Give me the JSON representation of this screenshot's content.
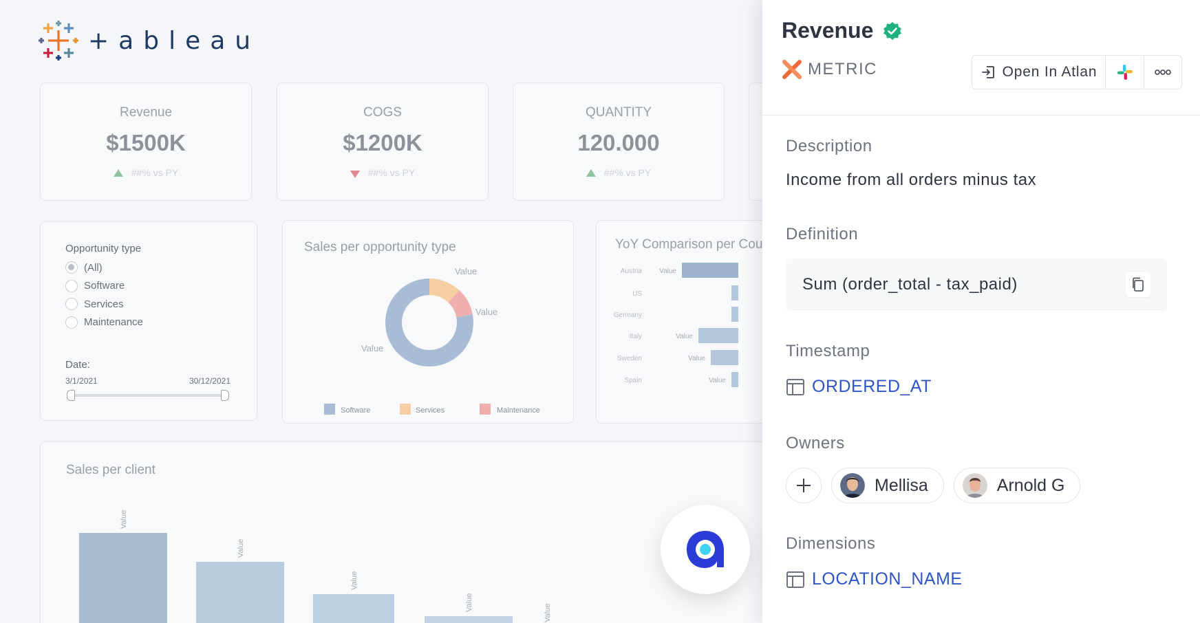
{
  "colors": {
    "atlan_blue": "#2d55c8",
    "verified_green": "#1fb27f",
    "software": "#a9bcd6",
    "services": "#f7cfa4",
    "maintenance": "#f0afaf"
  },
  "dashboard": {
    "logo_text": "+ableau",
    "kpis": [
      {
        "title": "Revenue",
        "value": "$1500K",
        "sub": "##% vs PY",
        "trend": "up"
      },
      {
        "title": "COGS",
        "value": "$1200K",
        "sub": "##% vs PY",
        "trend": "down"
      },
      {
        "title": "QUANTITY",
        "value": "120.000",
        "sub": "##% vs PY",
        "trend": "up"
      }
    ],
    "filter": {
      "title": "Opportunity type",
      "options": [
        "(All)",
        "Software",
        "Services",
        "Maintenance"
      ],
      "selected": "(All)",
      "date_label": "Date:",
      "date_start": "3/1/2021",
      "date_end": "30/12/2021"
    }
  },
  "chart_data": [
    {
      "type": "pie",
      "title": "Sales per opportunity type",
      "categories": [
        "Software",
        "Services",
        "Maintenance"
      ],
      "values": [
        78,
        12,
        10
      ],
      "data_labels": [
        "Value",
        "Value",
        "Value"
      ],
      "legend": "bottom"
    },
    {
      "type": "bar",
      "title": "YoY Comparison per Cou",
      "orientation": "horizontal",
      "categories": [
        "Austria",
        "US",
        "Germany",
        "Italy",
        "Sweden",
        "Spain"
      ],
      "data_labels": [
        "Value",
        "",
        "",
        "Value",
        "Value",
        "Value"
      ]
    },
    {
      "type": "bar",
      "title": "Sales per client",
      "data_labels": [
        "Value",
        "Value",
        "Value",
        "Value",
        "Value"
      ]
    }
  ],
  "panel": {
    "title": "Revenue",
    "type_label": "METRIC",
    "open_button": "Open In Atlan",
    "description_label": "Description",
    "description": "Income from all orders minus tax",
    "definition_label": "Definition",
    "definition": "Sum (order_total - tax_paid)",
    "timestamp_label": "Timestamp",
    "timestamp": "ORDERED_AT",
    "owners_label": "Owners",
    "owners": [
      "Mellisa",
      "Arnold G"
    ],
    "dimensions_label": "Dimensions",
    "dimension": "LOCATION_NAME"
  }
}
